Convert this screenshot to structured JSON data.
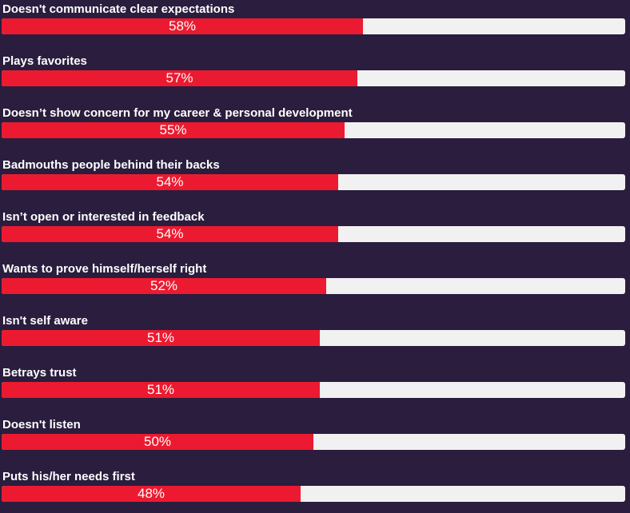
{
  "colors": {
    "background": "#2a1d3d",
    "bar_fill": "#ec1a30",
    "bar_track": "#f1f1f2",
    "text": "#ffffff"
  },
  "chart_data": {
    "type": "bar",
    "orientation": "horizontal",
    "xlim": [
      0,
      100
    ],
    "unit": "%",
    "categories": [
      "Doesn't communicate clear expectations",
      "Plays favorites",
      "Doesn’t show concern for my career & personal development",
      "Badmouths people behind their backs",
      "Isn’t open or interested in feedback",
      "Wants to prove himself/herself right",
      "Isn't self aware",
      "Betrays trust",
      "Doesn't listen",
      "Puts his/her needs first"
    ],
    "values": [
      58,
      57,
      55,
      54,
      54,
      52,
      51,
      51,
      50,
      48
    ],
    "value_labels": [
      "58%",
      "57%",
      "55%",
      "54%",
      "54%",
      "52%",
      "51%",
      "51%",
      "50%",
      "48%"
    ]
  }
}
